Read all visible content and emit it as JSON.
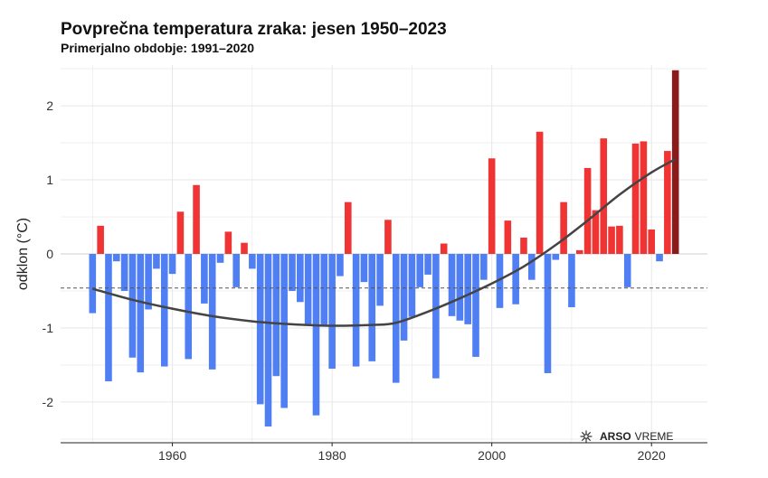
{
  "title": "Povprečna temperatura zraka: jesen 1950–2023",
  "subtitle": "Primerjalno obdobje: 1991–2020",
  "logo": {
    "text_a": "ARSO",
    "text_b": "VREME",
    "icon": "snowflake-sun-icon"
  },
  "colors": {
    "positive": "#f03434",
    "negative": "#4f7ff2",
    "latest": "#8b1a1a",
    "trend": "#444444",
    "grid": "#e6e6e6",
    "reference": "#555555"
  },
  "chart_data": {
    "type": "bar",
    "title": "Povprečna temperatura zraka: jesen 1950–2023",
    "subtitle": "Primerjalno obdobje: 1991–2020",
    "xlabel": "",
    "ylabel": "odklon (°C)",
    "xlim": [
      1946,
      2027
    ],
    "ylim": [
      -2.55,
      2.55
    ],
    "x_ticks": [
      1960,
      1980,
      2000,
      2020
    ],
    "y_ticks": [
      -2,
      -1,
      0,
      1,
      2
    ],
    "grid": true,
    "reference_line": -0.46,
    "years": [
      1950,
      1951,
      1952,
      1953,
      1954,
      1955,
      1956,
      1957,
      1958,
      1959,
      1960,
      1961,
      1962,
      1963,
      1964,
      1965,
      1966,
      1967,
      1968,
      1969,
      1970,
      1971,
      1972,
      1973,
      1974,
      1975,
      1976,
      1977,
      1978,
      1979,
      1980,
      1981,
      1982,
      1983,
      1984,
      1985,
      1986,
      1987,
      1988,
      1989,
      1990,
      1991,
      1992,
      1993,
      1994,
      1995,
      1996,
      1997,
      1998,
      1999,
      2000,
      2001,
      2002,
      2003,
      2004,
      2005,
      2006,
      2007,
      2008,
      2009,
      2010,
      2011,
      2012,
      2013,
      2014,
      2015,
      2016,
      2017,
      2018,
      2019,
      2020,
      2021,
      2022,
      2023
    ],
    "values": [
      -0.8,
      0.38,
      -1.72,
      -0.1,
      -0.5,
      -1.4,
      -1.6,
      -0.75,
      -0.2,
      -1.52,
      -0.27,
      0.57,
      -1.42,
      0.93,
      -0.67,
      -1.56,
      -0.12,
      0.3,
      -0.45,
      0.15,
      -0.2,
      -2.03,
      -2.33,
      -1.65,
      -2.08,
      -0.5,
      -0.65,
      -0.95,
      -2.18,
      -0.98,
      -1.55,
      -0.3,
      0.7,
      -1.52,
      -0.38,
      -1.45,
      -0.7,
      0.46,
      -1.74,
      -1.17,
      -0.85,
      -0.45,
      -0.28,
      -1.68,
      0.14,
      -0.84,
      -0.9,
      -0.95,
      -1.39,
      -0.35,
      1.29,
      -0.73,
      0.45,
      -0.68,
      0.22,
      -0.35,
      1.65,
      -1.61,
      -0.08,
      0.7,
      -0.72,
      0.05,
      1.16,
      0.59,
      1.56,
      0.37,
      0.38,
      -0.45,
      1.49,
      1.52,
      0.33,
      -0.1,
      1.39,
      2.48
    ],
    "trend": [
      [
        1950,
        -0.47
      ],
      [
        1955,
        -0.62
      ],
      [
        1960,
        -0.74
      ],
      [
        1965,
        -0.84
      ],
      [
        1970,
        -0.91
      ],
      [
        1975,
        -0.95
      ],
      [
        1980,
        -0.97
      ],
      [
        1985,
        -0.96
      ],
      [
        1988,
        -0.93
      ],
      [
        1992,
        -0.78
      ],
      [
        1996,
        -0.6
      ],
      [
        2000,
        -0.4
      ],
      [
        2004,
        -0.17
      ],
      [
        2008,
        0.12
      ],
      [
        2012,
        0.45
      ],
      [
        2016,
        0.8
      ],
      [
        2020,
        1.1
      ],
      [
        2023,
        1.28
      ]
    ]
  }
}
